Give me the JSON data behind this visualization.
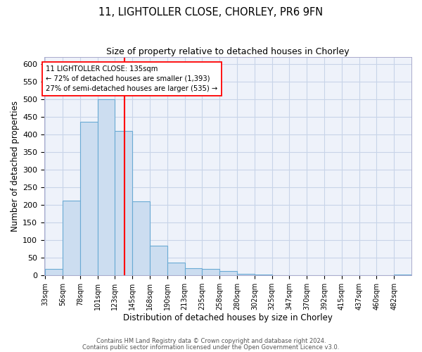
{
  "title": "11, LIGHTOLLER CLOSE, CHORLEY, PR6 9FN",
  "subtitle": "Size of property relative to detached houses in Chorley",
  "xlabel": "Distribution of detached houses by size in Chorley",
  "ylabel": "Number of detached properties",
  "bin_labels": [
    "33sqm",
    "56sqm",
    "78sqm",
    "101sqm",
    "123sqm",
    "145sqm",
    "168sqm",
    "190sqm",
    "213sqm",
    "235sqm",
    "258sqm",
    "280sqm",
    "302sqm",
    "325sqm",
    "347sqm",
    "370sqm",
    "392sqm",
    "415sqm",
    "437sqm",
    "460sqm",
    "482sqm"
  ],
  "bar_values": [
    18,
    212,
    435,
    500,
    410,
    210,
    85,
    37,
    20,
    18,
    12,
    5,
    2,
    1,
    1,
    0,
    0,
    0,
    0,
    0,
    3
  ],
  "bar_color": "#ccddf0",
  "bar_edge_color": "#6aaad4",
  "vline_x": 4,
  "vline_color": "red",
  "annotation_line1": "11 LIGHTOLLER CLOSE: 135sqm",
  "annotation_line2": "← 72% of detached houses are smaller (1,393)",
  "annotation_line3": "27% of semi-detached houses are larger (535) →",
  "annotation_box_color": "white",
  "annotation_box_edge": "red",
  "ylim": [
    0,
    620
  ],
  "yticks": [
    0,
    50,
    100,
    150,
    200,
    250,
    300,
    350,
    400,
    450,
    500,
    550,
    600
  ],
  "footer1": "Contains HM Land Registry data © Crown copyright and database right 2024.",
  "footer2": "Contains public sector information licensed under the Open Government Licence v3.0.",
  "bg_color": "#eef2fa",
  "grid_color": "#c8d4e8"
}
